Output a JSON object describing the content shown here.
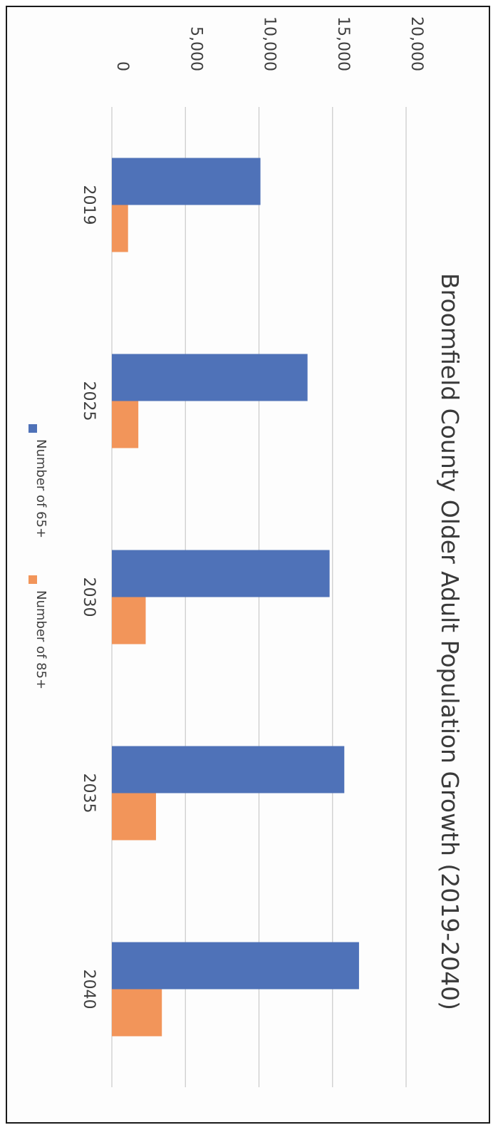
{
  "chart_data": {
    "type": "bar",
    "orientation": "rotated-90-clockwise",
    "title": "Broomfield County Older Adult Population Growth (2019-2040)",
    "categories": [
      "2019",
      "2025",
      "2030",
      "2035",
      "2040"
    ],
    "series": [
      {
        "name": "Number of 65+",
        "color": "#4f72b8",
        "values": [
          10100,
          13300,
          14800,
          15800,
          16800
        ]
      },
      {
        "name": "Number of 85+",
        "color": "#f2955a",
        "values": [
          1100,
          1800,
          2300,
          3000,
          3400
        ]
      }
    ],
    "ylim": [
      0,
      20000
    ],
    "yticks": [
      "0",
      "5,000",
      "10,000",
      "15,000",
      "20,000"
    ],
    "grid": true,
    "legend_position": "bottom"
  }
}
